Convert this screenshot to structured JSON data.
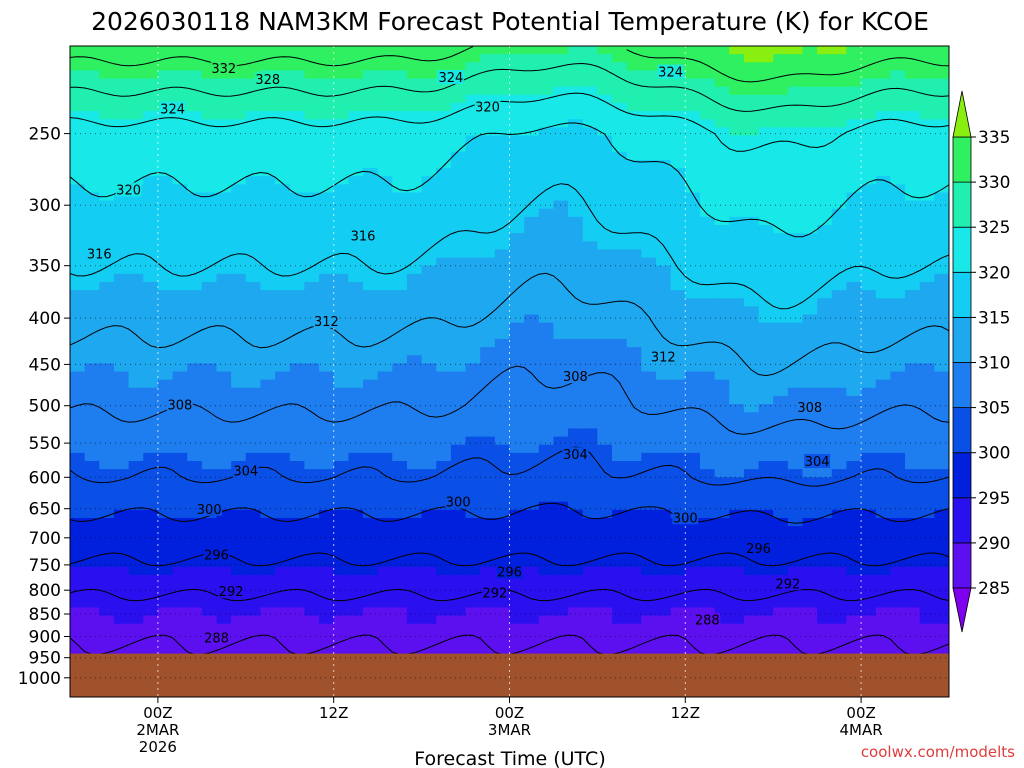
{
  "chart_data": {
    "type": "heatmap",
    "title": "2026030118 NAM3KM Forecast Potential Temperature (K) for KCOE",
    "xlabel": "Forecast Time (UTC)",
    "ylabel": "",
    "credit": "coolwx.com/modelts",
    "x_ticks": [
      {
        "label": "00Z",
        "sub1": "2MAR",
        "sub2": "2026",
        "hour": 6
      },
      {
        "label": "12Z",
        "sub1": "",
        "sub2": "",
        "hour": 18
      },
      {
        "label": "00Z",
        "sub1": "3MAR",
        "sub2": "",
        "hour": 30
      },
      {
        "label": "12Z",
        "sub1": "",
        "sub2": "",
        "hour": 42
      },
      {
        "label": "00Z",
        "sub1": "4MAR",
        "sub2": "",
        "hour": 54
      }
    ],
    "xlim": [
      0,
      60
    ],
    "y_ticks": [
      "250",
      "300",
      "350",
      "400",
      "450",
      "500",
      "550",
      "600",
      "650",
      "700",
      "750",
      "800",
      "850",
      "900",
      "950",
      "1000"
    ],
    "ylim": [
      1050,
      200
    ],
    "y_scale": "log-pressure",
    "surface_pressure": 940,
    "colorbar": {
      "levels": [
        285,
        290,
        295,
        300,
        305,
        310,
        315,
        320,
        325,
        330,
        335
      ],
      "colors": [
        "#7e00ee",
        "#5c10f0",
        "#2a10ee",
        "#0020dd",
        "#0a50e6",
        "#1e7ef0",
        "#1ea8f0",
        "#14cdf2",
        "#18e8e8",
        "#20efb0",
        "#2ef060",
        "#88ef10"
      ]
    },
    "contour_labels": [
      {
        "value": "332",
        "x": 10.5,
        "p": 212
      },
      {
        "value": "328",
        "x": 13.5,
        "p": 218
      },
      {
        "value": "324",
        "x": 26,
        "p": 217
      },
      {
        "value": "324",
        "x": 41,
        "p": 214
      },
      {
        "value": "324",
        "x": 7,
        "p": 235
      },
      {
        "value": "320",
        "x": 28.5,
        "p": 234
      },
      {
        "value": "320",
        "x": 4,
        "p": 289
      },
      {
        "value": "316",
        "x": 20,
        "p": 325
      },
      {
        "value": "316",
        "x": 2,
        "p": 340
      },
      {
        "value": "312",
        "x": 17.5,
        "p": 404
      },
      {
        "value": "312",
        "x": 40.5,
        "p": 442
      },
      {
        "value": "308",
        "x": 34.5,
        "p": 465
      },
      {
        "value": "308",
        "x": 7.5,
        "p": 500
      },
      {
        "value": "308",
        "x": 50.5,
        "p": 503
      },
      {
        "value": "304",
        "x": 34.5,
        "p": 567
      },
      {
        "value": "304",
        "x": 12,
        "p": 591
      },
      {
        "value": "304",
        "x": 51,
        "p": 577
      },
      {
        "value": "300",
        "x": 9.5,
        "p": 652
      },
      {
        "value": "300",
        "x": 26.5,
        "p": 640
      },
      {
        "value": "300",
        "x": 42,
        "p": 666
      },
      {
        "value": "296",
        "x": 10,
        "p": 732
      },
      {
        "value": "296",
        "x": 47,
        "p": 720
      },
      {
        "value": "296",
        "x": 30,
        "p": 765
      },
      {
        "value": "292",
        "x": 11,
        "p": 804
      },
      {
        "value": "292",
        "x": 29,
        "p": 807
      },
      {
        "value": "292",
        "x": 49,
        "p": 788
      },
      {
        "value": "288",
        "x": 43.5,
        "p": 864
      },
      {
        "value": "288",
        "x": 10,
        "p": 905
      }
    ]
  }
}
